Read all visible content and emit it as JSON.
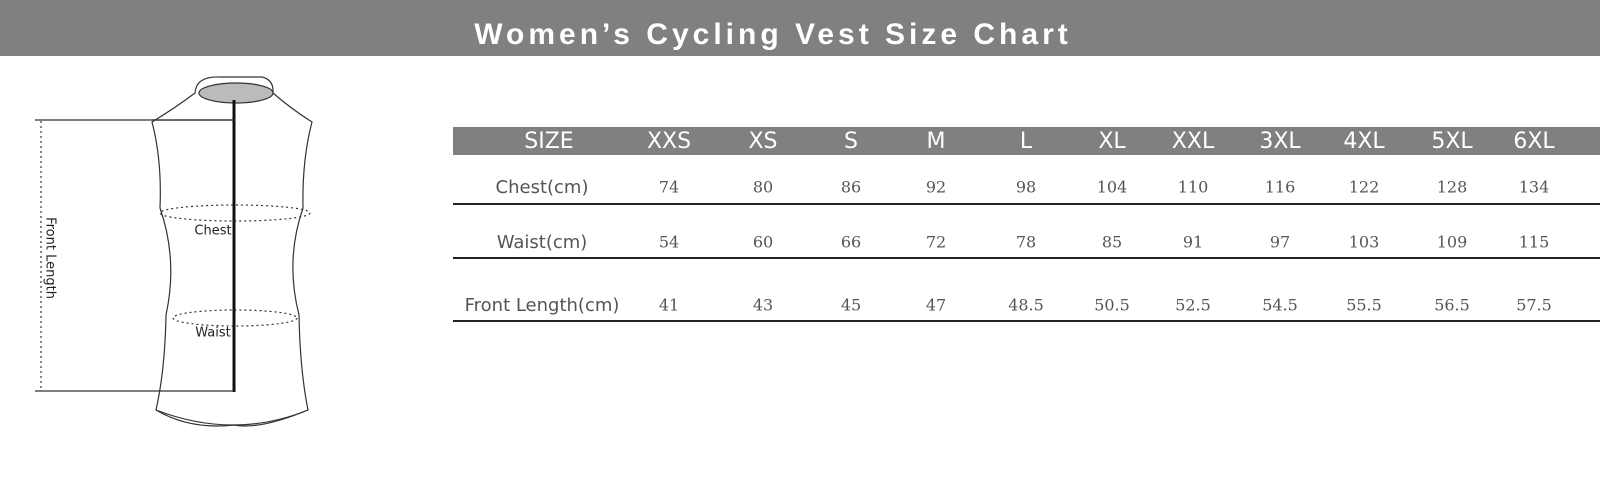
{
  "header": {
    "title": "Women’s Cycling Vest Size Chart"
  },
  "diagram": {
    "front_length": "Front Length",
    "chest": "Chest",
    "waist": "Waist"
  },
  "table": {
    "columns": [
      "SIZE",
      "XXS",
      "XS",
      "S",
      "M",
      "L",
      "XL",
      "XXL",
      "3XL",
      "4XL",
      "5XL",
      "6XL"
    ],
    "rows": [
      [
        "Chest(cm)",
        "74",
        "80",
        "86",
        "92",
        "98",
        "104",
        "110",
        "116",
        "122",
        "128",
        "134"
      ],
      [
        "Waist(cm)",
        "54",
        "60",
        "66",
        "72",
        "78",
        "85",
        "91",
        "97",
        "103",
        "109",
        "115"
      ],
      [
        "Front Length(cm)",
        "41",
        "43",
        "45",
        "47",
        "48.5",
        "50.5",
        "52.5",
        "54.5",
        "55.5",
        "56.5",
        "57.5"
      ]
    ]
  }
}
